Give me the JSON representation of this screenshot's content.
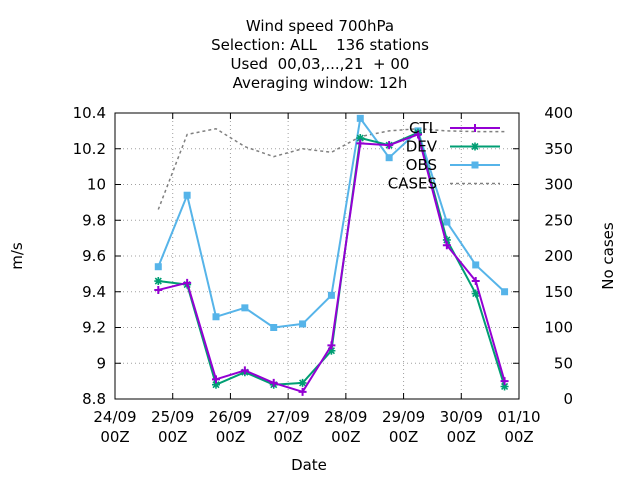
{
  "chart_data": {
    "type": "line",
    "title_lines": [
      "Wind speed 700hPa",
      "Selection: ALL    136 stations",
      "Used  00,03,...,21  + 00",
      "Averaging window: 12h"
    ],
    "xlabel": "Date",
    "ylabel": "m/s",
    "y2label": "No cases",
    "xlim": [
      0,
      7
    ],
    "ylim": [
      8.8,
      10.4
    ],
    "y2lim": [
      0,
      400
    ],
    "x_ticks": [
      {
        "x": 0,
        "line1": "24/09",
        "line2": "00Z"
      },
      {
        "x": 1,
        "line1": "25/09",
        "line2": "00Z"
      },
      {
        "x": 2,
        "line1": "26/09",
        "line2": "00Z"
      },
      {
        "x": 3,
        "line1": "27/09",
        "line2": "00Z"
      },
      {
        "x": 4,
        "line1": "28/09",
        "line2": "00Z"
      },
      {
        "x": 5,
        "line1": "29/09",
        "line2": "00Z"
      },
      {
        "x": 6,
        "line1": "30/09",
        "line2": "00Z"
      },
      {
        "x": 7,
        "line1": "01/10",
        "line2": "00Z"
      }
    ],
    "y_ticks": [
      "8.8",
      "9",
      "9.2",
      "9.4",
      "9.6",
      "9.8",
      "10",
      "10.2",
      "10.4"
    ],
    "y2_ticks": [
      "0",
      "50",
      "100",
      "150",
      "200",
      "250",
      "300",
      "350",
      "400"
    ],
    "grid": true,
    "legend_position": "top-right",
    "x": [
      0.75,
      1.25,
      1.75,
      2.25,
      2.75,
      3.25,
      3.75,
      4.25,
      4.75,
      5.25,
      5.75,
      6.25,
      6.75
    ],
    "series": [
      {
        "name": "CTL",
        "color": "#9400d3",
        "axis": "left",
        "marker": "plus",
        "values": [
          9.41,
          9.45,
          8.91,
          8.96,
          8.89,
          8.84,
          9.1,
          10.23,
          10.22,
          10.28,
          9.66,
          9.46,
          8.9
        ]
      },
      {
        "name": "DEV",
        "color": "#009e73",
        "axis": "left",
        "marker": "star",
        "values": [
          9.46,
          9.44,
          8.88,
          8.95,
          8.88,
          8.89,
          9.07,
          10.26,
          10.22,
          10.29,
          9.69,
          9.39,
          8.87
        ]
      },
      {
        "name": "OBS",
        "color": "#56b4e9",
        "axis": "left",
        "marker": "box",
        "values": [
          9.54,
          9.94,
          9.26,
          9.31,
          9.2,
          9.22,
          9.38,
          10.37,
          10.15,
          10.3,
          9.79,
          9.55,
          9.4
        ]
      },
      {
        "name": "CASES",
        "color": "#808080",
        "axis": "right",
        "dashed": true,
        "values": [
          265,
          370,
          378,
          353,
          339,
          350,
          345,
          367,
          375,
          378,
          375,
          374,
          374
        ]
      }
    ]
  }
}
